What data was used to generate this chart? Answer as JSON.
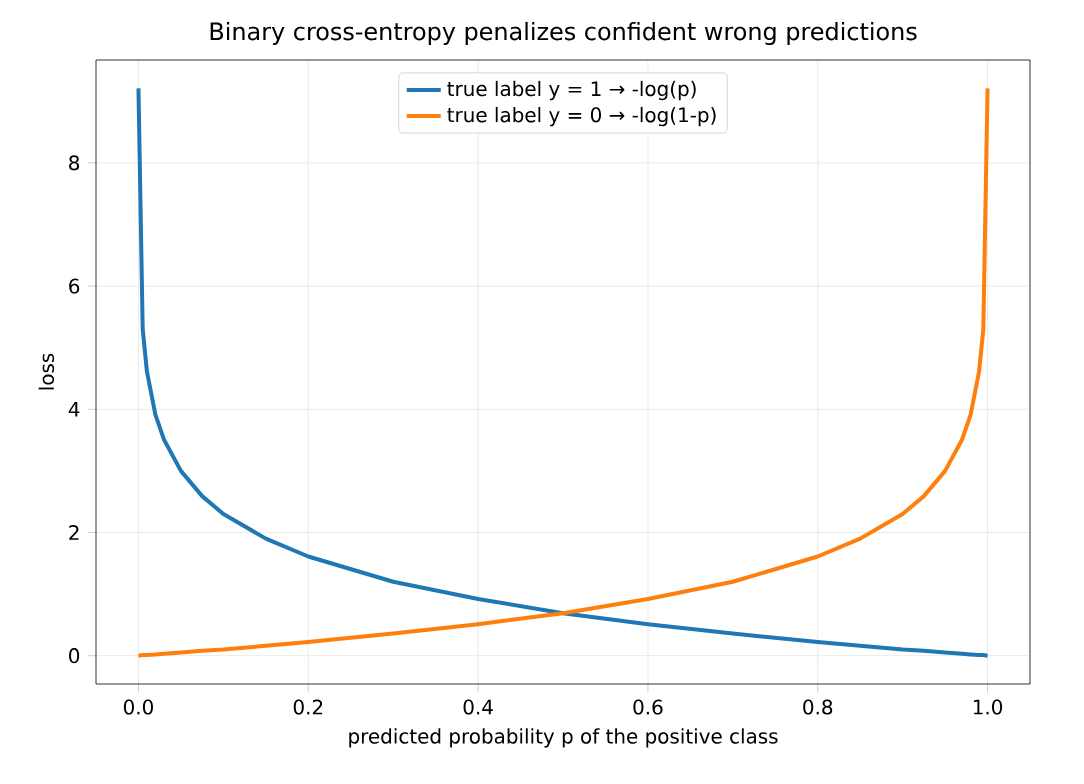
{
  "chart_data": {
    "type": "line",
    "title": "Binary cross-entropy penalizes confident wrong predictions",
    "xlabel": "predicted probability p of the positive class",
    "ylabel": "loss",
    "x": [
      0,
      0.005,
      0.01,
      0.02,
      0.03,
      0.05,
      0.075,
      0.1,
      0.15,
      0.2,
      0.3,
      0.4,
      0.5,
      0.6,
      0.7,
      0.8,
      0.85,
      0.9,
      0.925,
      0.95,
      0.97,
      0.98,
      0.99,
      0.995,
      1
    ],
    "series": [
      {
        "name": "true label y = 1  →  -log(p)",
        "color": "#1f77b4",
        "values": [
          9.21,
          5.3,
          4.61,
          3.91,
          3.51,
          3.0,
          2.59,
          2.3,
          1.9,
          1.61,
          1.2,
          0.92,
          0.69,
          0.51,
          0.36,
          0.22,
          0.16,
          0.1,
          0.08,
          0.05,
          0.03,
          0.02,
          0.01,
          0.01,
          0
        ]
      },
      {
        "name": "true label y = 0  →  -log(1-p)",
        "color": "#ff7f0e",
        "values": [
          0,
          0.01,
          0.01,
          0.02,
          0.03,
          0.05,
          0.08,
          0.1,
          0.16,
          0.22,
          0.36,
          0.51,
          0.69,
          0.92,
          1.2,
          1.61,
          1.9,
          2.3,
          2.59,
          3.0,
          3.51,
          3.91,
          4.61,
          5.3,
          9.21
        ]
      }
    ],
    "xlim": [
      -0.05,
      1.05
    ],
    "ylim": [
      -0.46,
      9.67
    ],
    "xticks": [
      {
        "value": 0,
        "label": "0.0"
      },
      0.2,
      0.4,
      0.6,
      0.8,
      {
        "value": 1,
        "label": "1.0"
      }
    ],
    "yticks": [
      0,
      2,
      4,
      6,
      8
    ],
    "grid": true,
    "legend": "top",
    "marker": "none",
    "line_style": "solid"
  }
}
